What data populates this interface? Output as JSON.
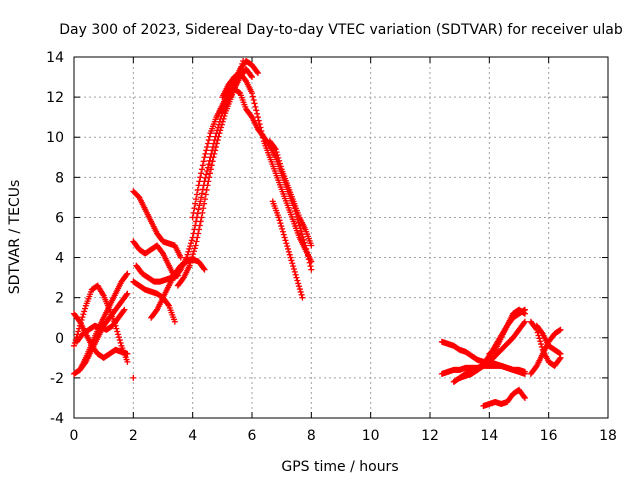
{
  "chart_data": {
    "type": "scatter",
    "title": "Day 300 of 2023, Sidereal Day-to-day VTEC variation (SDTVAR) for receiver ulab",
    "xlabel": "GPS time / hours",
    "ylabel": "SDTVAR / TECUs",
    "xlim": [
      0,
      18
    ],
    "ylim": [
      -4,
      14
    ],
    "xticks": [
      "0",
      "2",
      "4",
      "6",
      "8",
      "10",
      "12",
      "14",
      "16",
      "18"
    ],
    "yticks": [
      "-4",
      "-2",
      "0",
      "2",
      "4",
      "6",
      "8",
      "10",
      "12",
      "14"
    ],
    "grid": true,
    "marker": "+",
    "color": "#ff0000",
    "series": [
      {
        "name": "s1",
        "x": [
          0.0,
          0.2,
          0.4,
          0.6,
          0.8,
          1.0,
          1.2,
          1.4,
          1.6,
          1.8
        ],
        "y": [
          1.2,
          0.8,
          0.2,
          -0.4,
          -0.8,
          -1.0,
          -0.8,
          -0.6,
          -0.7,
          -0.8
        ]
      },
      {
        "name": "s2",
        "x": [
          0.0,
          0.2,
          0.4,
          0.6,
          0.8,
          1.0,
          1.2,
          1.4,
          1.6,
          1.8
        ],
        "y": [
          -1.8,
          -1.6,
          -1.0,
          -0.3,
          0.4,
          1.0,
          1.6,
          2.2,
          2.8,
          3.2
        ]
      },
      {
        "name": "s3",
        "x": [
          0.0,
          0.2,
          0.4,
          0.6,
          0.8,
          1.0,
          1.2,
          1.4,
          1.6,
          1.8
        ],
        "y": [
          -0.4,
          0.6,
          1.6,
          2.4,
          2.6,
          2.1,
          1.4,
          0.6,
          -0.4,
          -1.2
        ]
      },
      {
        "name": "s4",
        "x": [
          0.2,
          0.4,
          0.6,
          0.8,
          1.0,
          1.2,
          1.4,
          1.6,
          1.8
        ],
        "y": [
          -1.6,
          -1.2,
          -0.6,
          0.0,
          0.6,
          1.0,
          1.4,
          1.8,
          2.2
        ]
      },
      {
        "name": "s5",
        "x": [
          0.1,
          0.3,
          0.5,
          0.7,
          0.9,
          1.1,
          1.3,
          1.5,
          1.7
        ],
        "y": [
          -0.2,
          0.2,
          0.4,
          0.6,
          0.5,
          0.4,
          0.6,
          1.0,
          1.4
        ]
      },
      {
        "name": "s6",
        "x": [
          2.0,
          2.2,
          2.4,
          2.6,
          2.8,
          3.0,
          3.2,
          3.4,
          3.6
        ],
        "y": [
          7.3,
          7.0,
          6.4,
          5.8,
          5.2,
          4.8,
          4.7,
          4.6,
          4.0
        ]
      },
      {
        "name": "s7",
        "x": [
          2.0,
          2.2,
          2.4,
          2.6,
          2.8,
          3.0,
          3.2,
          3.4
        ],
        "y": [
          4.8,
          4.4,
          4.2,
          4.4,
          4.6,
          4.2,
          3.6,
          3.0
        ]
      },
      {
        "name": "s8",
        "x": [
          2.0,
          2.2,
          2.4,
          2.6,
          2.8,
          3.0,
          3.2,
          3.4
        ],
        "y": [
          2.8,
          2.6,
          2.4,
          2.3,
          2.2,
          2.0,
          1.6,
          0.8
        ]
      },
      {
        "name": "s9",
        "x": [
          2.1,
          2.3,
          2.5,
          2.7,
          2.9,
          3.1,
          3.3,
          3.5
        ],
        "y": [
          3.6,
          3.2,
          3.0,
          2.8,
          2.8,
          2.9,
          3.0,
          3.1
        ]
      },
      {
        "name": "s10",
        "x": [
          2.6,
          2.8,
          3.0,
          3.2,
          3.4,
          3.6,
          3.8,
          4.0,
          4.2,
          4.4
        ],
        "y": [
          1.0,
          1.4,
          2.0,
          2.6,
          3.2,
          3.6,
          3.8,
          3.9,
          3.8,
          3.4
        ]
      },
      {
        "name": "s11",
        "x": [
          3.4,
          3.6,
          3.8,
          4.0,
          4.2,
          4.4,
          4.6,
          4.8,
          5.0,
          5.2,
          5.4,
          5.6,
          5.8,
          6.0
        ],
        "y": [
          3.0,
          3.4,
          4.0,
          5.0,
          6.4,
          7.8,
          9.0,
          10.2,
          11.2,
          11.8,
          12.4,
          13.0,
          13.4,
          13.0
        ]
      },
      {
        "name": "s12",
        "x": [
          3.5,
          3.7,
          3.9,
          4.1,
          4.3,
          4.5,
          4.7,
          4.9,
          5.1,
          5.3,
          5.5,
          5.7
        ],
        "y": [
          2.6,
          3.0,
          3.6,
          4.6,
          6.0,
          7.6,
          9.0,
          10.2,
          11.2,
          12.0,
          12.8,
          13.8
        ]
      },
      {
        "name": "s13",
        "x": [
          4.0,
          4.2,
          4.4,
          4.6,
          4.8,
          5.0,
          5.2,
          5.4,
          5.6,
          5.8,
          6.0,
          6.2
        ],
        "y": [
          6.0,
          7.6,
          9.0,
          10.2,
          11.0,
          11.6,
          12.2,
          12.8,
          13.4,
          13.8,
          13.6,
          13.2
        ]
      },
      {
        "name": "s14",
        "x": [
          5.0,
          5.2,
          5.4,
          5.6,
          5.8,
          6.0,
          6.2,
          6.4,
          6.6,
          6.8,
          7.0,
          7.2,
          7.4,
          7.6,
          7.8,
          8.0
        ],
        "y": [
          12.0,
          12.6,
          13.0,
          13.2,
          12.8,
          12.2,
          11.0,
          9.8,
          9.0,
          8.2,
          7.4,
          6.6,
          5.8,
          5.0,
          4.4,
          3.8
        ]
      },
      {
        "name": "s15",
        "x": [
          5.4,
          5.6,
          5.8,
          6.0,
          6.2,
          6.4,
          6.6,
          6.8,
          7.0,
          7.2,
          7.4,
          7.6,
          7.8,
          8.0
        ],
        "y": [
          12.4,
          12.2,
          11.4,
          11.0,
          10.4,
          10.0,
          9.6,
          9.0,
          8.2,
          7.4,
          6.6,
          5.6,
          4.6,
          3.4
        ]
      },
      {
        "name": "s16",
        "x": [
          6.6,
          6.8,
          7.0,
          7.2,
          7.4,
          7.6,
          7.8,
          8.0
        ],
        "y": [
          9.8,
          9.4,
          8.4,
          7.6,
          6.8,
          6.0,
          5.4,
          4.6
        ]
      },
      {
        "name": "s17",
        "x": [
          6.7,
          6.9,
          7.1,
          7.3,
          7.5,
          7.7
        ],
        "y": [
          6.8,
          6.0,
          5.0,
          4.0,
          3.0,
          2.0
        ]
      },
      {
        "name": "s18",
        "x": [
          12.4,
          12.6,
          12.8,
          13.0,
          13.2,
          13.4,
          13.6,
          13.8,
          14.0,
          14.2,
          14.4,
          14.6,
          14.8,
          15.0,
          15.2
        ],
        "y": [
          -0.2,
          -0.3,
          -0.4,
          -0.6,
          -0.7,
          -0.9,
          -1.1,
          -1.2,
          -1.2,
          -1.3,
          -1.4,
          -1.5,
          -1.6,
          -1.7,
          -1.8
        ]
      },
      {
        "name": "s19",
        "x": [
          12.4,
          12.6,
          12.8,
          13.0,
          13.2,
          13.4,
          13.6,
          13.8,
          14.0,
          14.2,
          14.4,
          14.6,
          14.8,
          15.0,
          15.2
        ],
        "y": [
          -1.8,
          -1.7,
          -1.6,
          -1.6,
          -1.5,
          -1.5,
          -1.5,
          -1.4,
          -1.4,
          -1.4,
          -1.4,
          -1.5,
          -1.6,
          -1.6,
          -1.7
        ]
      },
      {
        "name": "s20",
        "x": [
          12.8,
          13.0,
          13.2,
          13.4,
          13.6,
          13.8,
          14.0,
          14.2,
          14.4,
          14.6,
          14.8,
          15.0,
          15.2
        ],
        "y": [
          -2.2,
          -2.0,
          -1.8,
          -1.7,
          -1.6,
          -1.4,
          -1.2,
          -0.9,
          -0.6,
          -0.3,
          0.0,
          0.4,
          0.8
        ]
      },
      {
        "name": "s21",
        "x": [
          13.0,
          13.2,
          13.4,
          13.6,
          13.8,
          14.0,
          14.2,
          14.4,
          14.6,
          14.8,
          15.0,
          15.2
        ],
        "y": [
          -2.0,
          -1.9,
          -1.8,
          -1.6,
          -1.3,
          -0.9,
          -0.4,
          0.1,
          0.6,
          1.0,
          1.2,
          1.4
        ]
      },
      {
        "name": "s22",
        "x": [
          13.8,
          14.0,
          14.2,
          14.4,
          14.6,
          14.8,
          15.0,
          15.2
        ],
        "y": [
          -3.4,
          -3.3,
          -3.2,
          -3.3,
          -3.2,
          -2.8,
          -2.6,
          -3.0
        ]
      },
      {
        "name": "s23",
        "x": [
          14.0,
          14.2,
          14.4,
          14.6,
          14.8,
          15.0,
          15.2
        ],
        "y": [
          -0.8,
          -0.6,
          0.0,
          0.6,
          1.2,
          1.4,
          1.2
        ]
      },
      {
        "name": "s24",
        "x": [
          15.4,
          15.6,
          15.8,
          16.0,
          16.2,
          16.4
        ],
        "y": [
          0.8,
          0.4,
          -0.6,
          -1.2,
          -1.4,
          -1.0
        ]
      },
      {
        "name": "s25",
        "x": [
          15.4,
          15.6,
          15.8,
          16.0,
          16.2,
          16.4
        ],
        "y": [
          -1.8,
          -1.4,
          -0.8,
          -0.2,
          0.2,
          0.4
        ]
      },
      {
        "name": "s26",
        "x": [
          15.6,
          15.8,
          16.0,
          16.2,
          16.4
        ],
        "y": [
          0.6,
          0.2,
          -0.4,
          -0.6,
          -0.8
        ]
      }
    ],
    "isolated_points": [
      {
        "x": 2.0,
        "y": -2.0
      }
    ]
  }
}
